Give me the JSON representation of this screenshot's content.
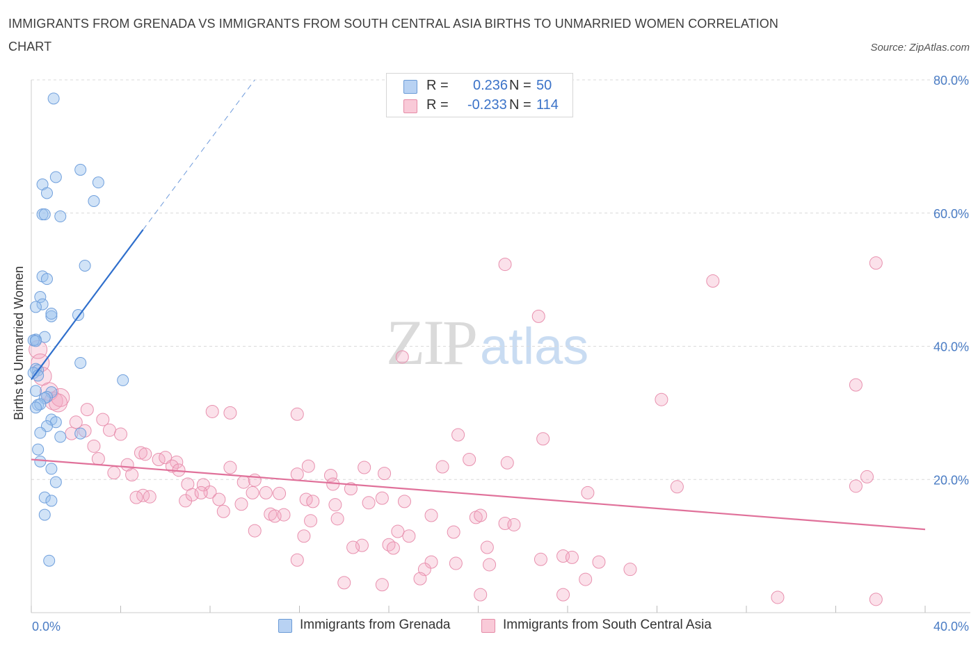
{
  "title": "IMMIGRANTS FROM GRENADA VS IMMIGRANTS FROM SOUTH CENTRAL ASIA BIRTHS TO UNMARRIED WOMEN CORRELATION CHART",
  "source": "Source: ZipAtlas.com",
  "watermark": {
    "zip": "ZIP",
    "atlas": "atlas"
  },
  "legend": {
    "rows": [
      {
        "r_label": "R =",
        "r_value": "0.236",
        "n_label": "N =",
        "n_value": "50",
        "color": "#aecdf2",
        "edge": "#6a9ad6"
      },
      {
        "r_label": "R =",
        "r_value": "-0.233",
        "n_label": "N =",
        "n_value": "114",
        "color": "#f7c1d1",
        "edge": "#e58aa6"
      }
    ]
  },
  "colors": {
    "blue_fill": "rgba(154,192,238,0.45)",
    "blue_edge": "#6f9fdc",
    "blue_line": "#2f6fcc",
    "pink_fill": "rgba(244,170,195,0.35)",
    "pink_edge": "#e890ae",
    "pink_line": "#e0719a",
    "grid": "#d9d9d9",
    "axis_text": "#4a7cc4"
  },
  "chart_data": {
    "type": "scatter",
    "title": "IMMIGRANTS FROM GRENADA VS IMMIGRANTS FROM SOUTH CENTRAL ASIA BIRTHS TO UNMARRIED WOMEN CORRELATION CHART",
    "xlabel": "",
    "ylabel": "Births to Unmarried Women",
    "xlim": [
      0,
      40
    ],
    "ylim": [
      0,
      80
    ],
    "x_tick_labels": [
      "0.0%",
      "40.0%"
    ],
    "y_tick_labels": [
      "20.0%",
      "40.0%",
      "60.0%",
      "80.0%"
    ],
    "y_ticks": [
      20,
      40,
      60,
      80
    ],
    "grid": true,
    "legend_position": "top-center",
    "series": [
      {
        "name": "Immigrants from Grenada",
        "points": [
          [
            1.0,
            77.2
          ],
          [
            2.2,
            66.5
          ],
          [
            3.0,
            64.6
          ],
          [
            1.1,
            65.4
          ],
          [
            0.5,
            64.3
          ],
          [
            0.7,
            63.0
          ],
          [
            2.8,
            61.8
          ],
          [
            0.5,
            59.8
          ],
          [
            1.3,
            59.5
          ],
          [
            0.6,
            59.8
          ],
          [
            2.4,
            52.1
          ],
          [
            0.5,
            50.5
          ],
          [
            0.7,
            50.1
          ],
          [
            0.4,
            47.4
          ],
          [
            0.5,
            46.3
          ],
          [
            0.2,
            45.9
          ],
          [
            0.9,
            44.5
          ],
          [
            0.9,
            44.9
          ],
          [
            2.1,
            44.7
          ],
          [
            0.6,
            41.4
          ],
          [
            0.2,
            41.0
          ],
          [
            0.1,
            40.9
          ],
          [
            2.2,
            37.5
          ],
          [
            0.2,
            36.6
          ],
          [
            0.3,
            36.4
          ],
          [
            0.1,
            36.0
          ],
          [
            0.3,
            35.6
          ],
          [
            4.1,
            34.9
          ],
          [
            0.2,
            33.3
          ],
          [
            0.9,
            33.1
          ],
          [
            0.7,
            32.4
          ],
          [
            0.6,
            32.2
          ],
          [
            0.3,
            31.2
          ],
          [
            0.4,
            31.3
          ],
          [
            0.2,
            30.8
          ],
          [
            0.9,
            29.0
          ],
          [
            1.1,
            28.6
          ],
          [
            0.7,
            28.0
          ],
          [
            0.4,
            27.0
          ],
          [
            2.2,
            26.9
          ],
          [
            1.3,
            26.4
          ],
          [
            0.3,
            24.5
          ],
          [
            0.4,
            22.7
          ],
          [
            0.9,
            21.6
          ],
          [
            1.1,
            19.6
          ],
          [
            0.6,
            17.3
          ],
          [
            0.9,
            16.8
          ],
          [
            0.6,
            14.7
          ],
          [
            0.8,
            7.8
          ],
          [
            0.2,
            40.8
          ]
        ],
        "trend": {
          "x": [
            0.0,
            5.0
          ],
          "y": [
            35.0,
            57.5
          ],
          "dashed_to": [
            10.0,
            80.0
          ]
        }
      },
      {
        "name": "Immigrants from South Central Asia",
        "points": [
          [
            0.3,
            39.5
          ],
          [
            0.4,
            37.5
          ],
          [
            0.5,
            35.5
          ],
          [
            0.8,
            33.2
          ],
          [
            1.0,
            31.8
          ],
          [
            1.3,
            32.3
          ],
          [
            1.2,
            31.5
          ],
          [
            2.5,
            30.5
          ],
          [
            3.2,
            29.0
          ],
          [
            2.0,
            28.6
          ],
          [
            3.5,
            27.4
          ],
          [
            1.8,
            26.9
          ],
          [
            2.4,
            27.3
          ],
          [
            4.0,
            26.8
          ],
          [
            2.8,
            25.0
          ],
          [
            4.9,
            24.0
          ],
          [
            3.0,
            23.1
          ],
          [
            5.7,
            23.0
          ],
          [
            6.0,
            23.3
          ],
          [
            6.5,
            22.6
          ],
          [
            6.3,
            22.0
          ],
          [
            4.3,
            22.2
          ],
          [
            3.7,
            21.0
          ],
          [
            4.5,
            20.7
          ],
          [
            6.6,
            21.4
          ],
          [
            8.9,
            21.8
          ],
          [
            7.0,
            19.3
          ],
          [
            7.7,
            19.2
          ],
          [
            8.0,
            18.1
          ],
          [
            9.5,
            19.6
          ],
          [
            10.0,
            19.9
          ],
          [
            9.9,
            18.0
          ],
          [
            11.9,
            20.8
          ],
          [
            13.4,
            20.6
          ],
          [
            13.5,
            19.3
          ],
          [
            14.3,
            18.6
          ],
          [
            14.9,
            21.8
          ],
          [
            15.8,
            20.9
          ],
          [
            12.4,
            22.0
          ],
          [
            18.4,
            21.9
          ],
          [
            19.6,
            23.0
          ],
          [
            21.3,
            22.5
          ],
          [
            19.1,
            26.7
          ],
          [
            8.9,
            30.0
          ],
          [
            11.9,
            29.8
          ],
          [
            22.9,
            26.1
          ],
          [
            16.6,
            38.4
          ],
          [
            21.2,
            52.3
          ],
          [
            22.7,
            44.5
          ],
          [
            30.5,
            49.8
          ],
          [
            37.8,
            52.5
          ],
          [
            36.9,
            34.2
          ],
          [
            28.2,
            32.0
          ],
          [
            37.4,
            20.4
          ],
          [
            36.9,
            19.0
          ],
          [
            28.9,
            18.9
          ],
          [
            24.9,
            18.0
          ],
          [
            5.0,
            17.6
          ],
          [
            5.3,
            17.4
          ],
          [
            4.7,
            17.3
          ],
          [
            6.9,
            16.8
          ],
          [
            7.2,
            17.7
          ],
          [
            8.4,
            17.0
          ],
          [
            7.6,
            18.0
          ],
          [
            8.6,
            15.2
          ],
          [
            9.4,
            16.3
          ],
          [
            10.5,
            18.0
          ],
          [
            11.1,
            17.9
          ],
          [
            12.3,
            17.0
          ],
          [
            12.6,
            16.7
          ],
          [
            13.6,
            16.2
          ],
          [
            15.1,
            16.5
          ],
          [
            15.7,
            17.2
          ],
          [
            16.7,
            16.7
          ],
          [
            10.7,
            14.8
          ],
          [
            10.9,
            14.5
          ],
          [
            11.3,
            14.7
          ],
          [
            12.5,
            13.8
          ],
          [
            13.7,
            14.1
          ],
          [
            17.9,
            14.6
          ],
          [
            19.9,
            14.3
          ],
          [
            20.1,
            14.6
          ],
          [
            21.2,
            13.4
          ],
          [
            21.6,
            13.2
          ],
          [
            10.0,
            12.3
          ],
          [
            12.2,
            11.5
          ],
          [
            14.8,
            10.1
          ],
          [
            16.0,
            10.2
          ],
          [
            16.4,
            12.2
          ],
          [
            16.9,
            11.5
          ],
          [
            18.9,
            12.1
          ],
          [
            14.4,
            9.8
          ],
          [
            16.2,
            9.7
          ],
          [
            20.4,
            9.8
          ],
          [
            11.9,
            7.9
          ],
          [
            17.9,
            7.6
          ],
          [
            19.0,
            7.4
          ],
          [
            17.6,
            6.5
          ],
          [
            20.5,
            7.2
          ],
          [
            22.8,
            8.0
          ],
          [
            23.8,
            8.5
          ],
          [
            24.2,
            8.3
          ],
          [
            25.4,
            7.6
          ],
          [
            26.8,
            6.5
          ],
          [
            14.0,
            4.5
          ],
          [
            15.7,
            4.2
          ],
          [
            17.4,
            5.1
          ],
          [
            24.8,
            5.0
          ],
          [
            20.1,
            2.7
          ],
          [
            23.8,
            2.7
          ],
          [
            33.4,
            2.3
          ],
          [
            37.8,
            2.0
          ],
          [
            5.1,
            23.8
          ],
          [
            8.1,
            30.2
          ]
        ],
        "trend": {
          "x": [
            0.0,
            40.0
          ],
          "y": [
            23.0,
            12.5
          ]
        }
      }
    ]
  },
  "bottom_legend": [
    {
      "label": "Immigrants from Grenada"
    },
    {
      "label": "Immigrants from South Central Asia"
    }
  ]
}
